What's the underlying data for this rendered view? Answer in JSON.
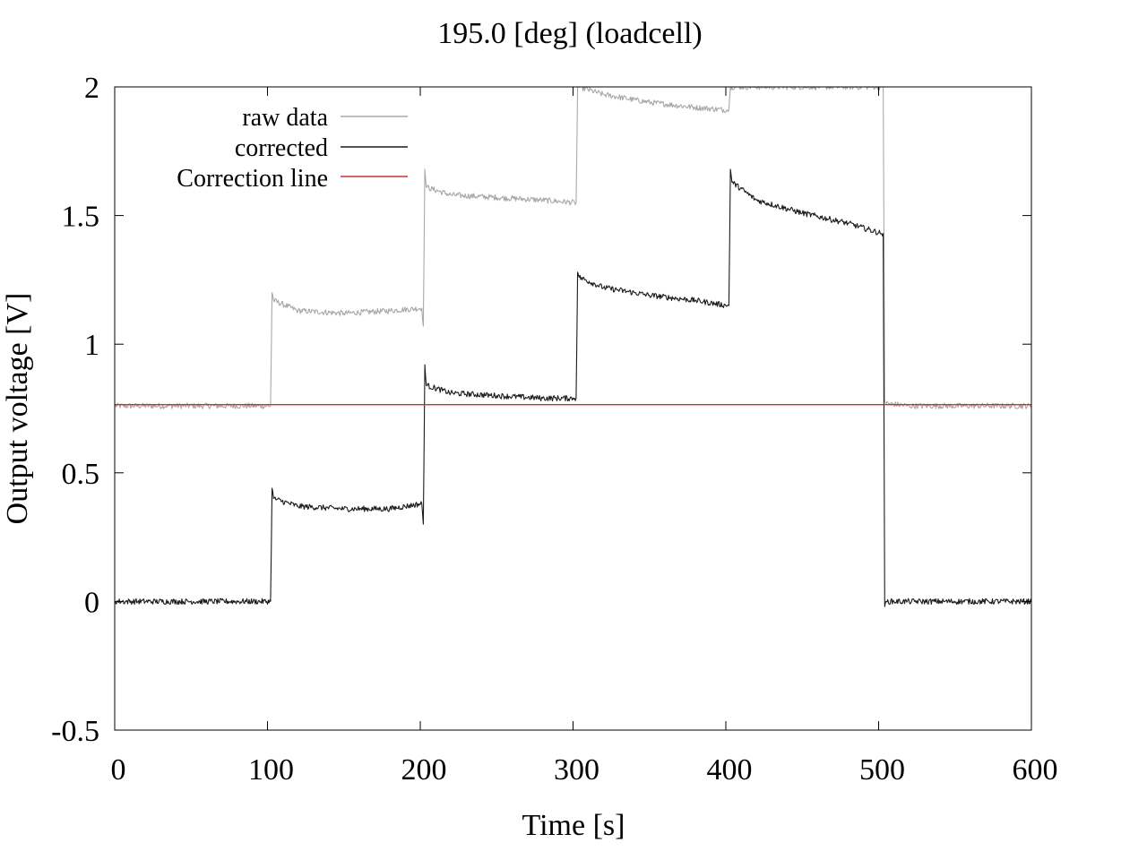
{
  "chart_data": {
    "type": "line",
    "title": "195.0 [deg] (loadcell)",
    "xlabel": "Time [s]",
    "ylabel": "Output voltage [V]",
    "xlim": [
      0,
      600
    ],
    "ylim": [
      -0.5,
      2
    ],
    "x_ticks": [
      0,
      100,
      200,
      300,
      400,
      500,
      600
    ],
    "x_tick_labels": [
      "0",
      "100",
      "200",
      "300",
      "400",
      "500",
      "600"
    ],
    "y_ticks": [
      -0.5,
      0,
      0.5,
      1,
      1.5,
      2
    ],
    "y_tick_labels": [
      "-0.5",
      "0",
      "0.5",
      "1",
      "1.5",
      "2"
    ],
    "grid": false,
    "legend_position": "top-left",
    "series": [
      {
        "name": "raw data",
        "color": "#a8a8a8",
        "x": [
          0,
          102,
          103,
          104,
          120,
          150,
          180,
          201,
          202,
          203,
          204,
          220,
          250,
          280,
          301,
          302,
          303,
          304,
          320,
          350,
          380,
          401,
          402,
          403,
          404,
          503,
          504,
          505,
          520,
          560,
          600
        ],
        "y": [
          0.76,
          0.76,
          1.2,
          1.17,
          1.13,
          1.12,
          1.13,
          1.14,
          1.07,
          1.68,
          1.61,
          1.58,
          1.57,
          1.56,
          1.55,
          1.55,
          2.0,
          2.0,
          1.97,
          1.94,
          1.92,
          1.91,
          1.91,
          2.0,
          2.0,
          2.0,
          0.78,
          0.77,
          0.76,
          0.76,
          0.76
        ]
      },
      {
        "name": "corrected",
        "color": "#1a1a1a",
        "x": [
          0,
          102,
          103,
          104,
          120,
          150,
          180,
          201,
          202,
          203,
          204,
          220,
          250,
          280,
          301,
          302,
          303,
          304,
          320,
          350,
          380,
          401,
          402,
          403,
          404,
          420,
          450,
          480,
          502,
          503,
          504,
          505,
          520,
          560,
          600
        ],
        "y": [
          0.0,
          0.0,
          0.44,
          0.4,
          0.37,
          0.36,
          0.36,
          0.38,
          0.3,
          0.92,
          0.84,
          0.81,
          0.8,
          0.79,
          0.79,
          0.79,
          1.28,
          1.26,
          1.22,
          1.19,
          1.17,
          1.15,
          1.15,
          1.68,
          1.63,
          1.56,
          1.51,
          1.47,
          1.43,
          1.43,
          -0.02,
          0.0,
          0.0,
          0.0,
          0.0
        ]
      },
      {
        "name": "Correction line",
        "color": "#cc3333",
        "x": [
          0,
          600
        ],
        "y": [
          0.765,
          0.765
        ]
      }
    ]
  }
}
